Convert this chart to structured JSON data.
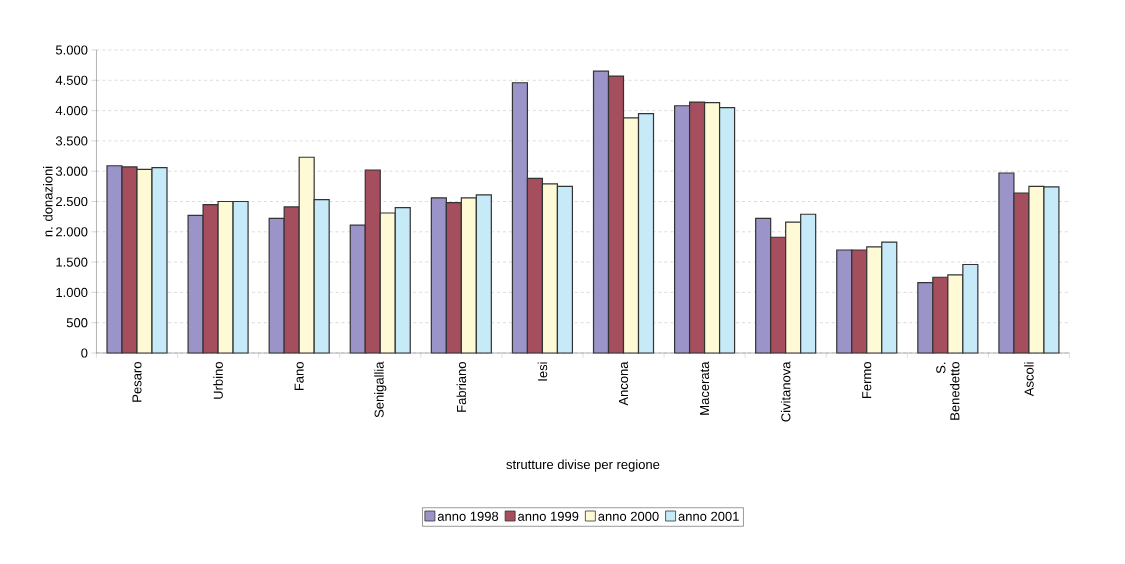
{
  "chart_data": {
    "type": "bar",
    "xlabel": "strutture divise per regione",
    "ylabel": "n. donazioni",
    "categories": [
      "Pesaro",
      "Urbino",
      "Fano",
      "Senigallia",
      "Fabriano",
      "Iesi",
      "Ancona",
      "Macerata",
      "Civitanova",
      "Fermo",
      "S. Benedetto",
      "Ascoli"
    ],
    "series": [
      {
        "name": "anno 1998",
        "color": "#9b94c8",
        "values": [
          3090,
          2270,
          2220,
          2110,
          2560,
          4460,
          4650,
          4080,
          2220,
          1700,
          1160,
          2970
        ]
      },
      {
        "name": "anno 1999",
        "color": "#a54f5e",
        "values": [
          3070,
          2450,
          2410,
          3020,
          2480,
          2880,
          4570,
          4140,
          1910,
          1700,
          1250,
          2640
        ]
      },
      {
        "name": "anno 2000",
        "color": "#fffad6",
        "values": [
          3030,
          2500,
          3230,
          2310,
          2560,
          2790,
          3880,
          4130,
          2160,
          1750,
          1290,
          2750
        ]
      },
      {
        "name": "anno 2001",
        "color": "#c6eaf8",
        "values": [
          3060,
          2500,
          2530,
          2400,
          2610,
          2750,
          3950,
          4050,
          2290,
          1830,
          1460,
          2740
        ]
      }
    ],
    "ylim": [
      0,
      5000
    ],
    "yticks": [
      0,
      500,
      {
        "value": 1000,
        "label": "1.000"
      },
      {
        "value": 1500,
        "label": "1.500"
      },
      {
        "value": 2000,
        "label": "2.000"
      },
      {
        "value": 2500,
        "label": "2.500"
      },
      {
        "value": 3000,
        "label": "3.000"
      },
      {
        "value": 3500,
        "label": "3.500"
      },
      {
        "value": 4000,
        "label": "4.000"
      },
      {
        "value": 4500,
        "label": "4.500"
      },
      {
        "value": 5000,
        "label": "5.000"
      }
    ],
    "grid": "y",
    "legend": "bottom"
  }
}
